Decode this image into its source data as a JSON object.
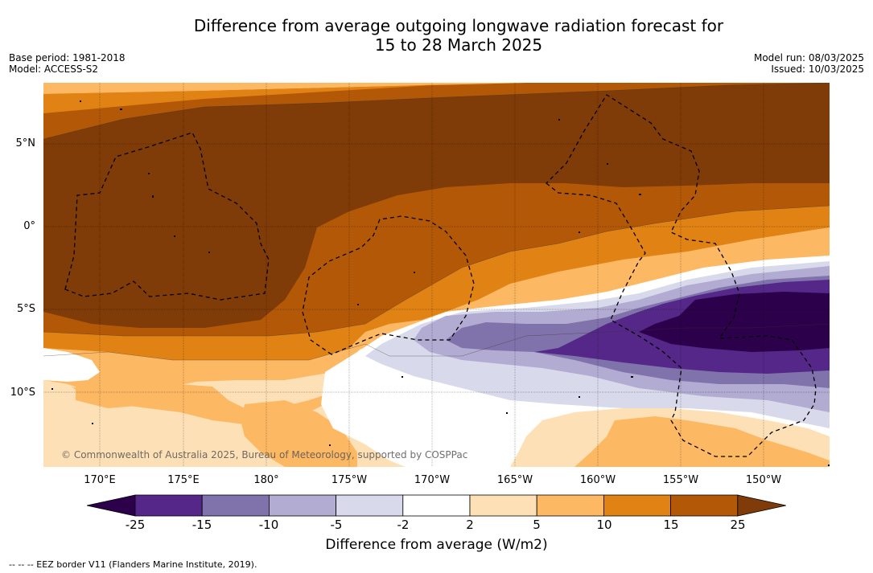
{
  "title_line1": "Difference from average outgoing longwave radiation forecast for",
  "title_line2": "15 to 28 March 2025",
  "base_period": "Base period: 1981-2018",
  "model": "Model: ACCESS-S2",
  "model_run": "Model run: 08/03/2025",
  "issued": "Issued: 10/03/2025",
  "copyright": "© Commonwealth of Australia 2025, Bureau of Meteorology, supported by COSPPac",
  "lon_labels": [
    "170°E",
    "175°E",
    "180°",
    "175°W",
    "170°W",
    "165°W",
    "160°W",
    "155°W",
    "150°W"
  ],
  "lat_labels": [
    "5°N",
    "0°",
    "5°S",
    "10°S"
  ],
  "colorbar": {
    "labels": [
      "-25",
      "-15",
      "-10",
      "-5",
      "-2",
      "2",
      "5",
      "10",
      "15",
      "25"
    ],
    "colors": [
      "#2d004b",
      "#542788",
      "#8073ac",
      "#b2abd2",
      "#d8daeb",
      "#ffffff",
      "#fee0b6",
      "#fdb863",
      "#e08214",
      "#b35806",
      "#7f3b08"
    ],
    "title": "Difference from average (W/m2)"
  },
  "eez_note": "--  --  -- EEZ border V11 (Flanders Marine Institute, 2019)."
}
